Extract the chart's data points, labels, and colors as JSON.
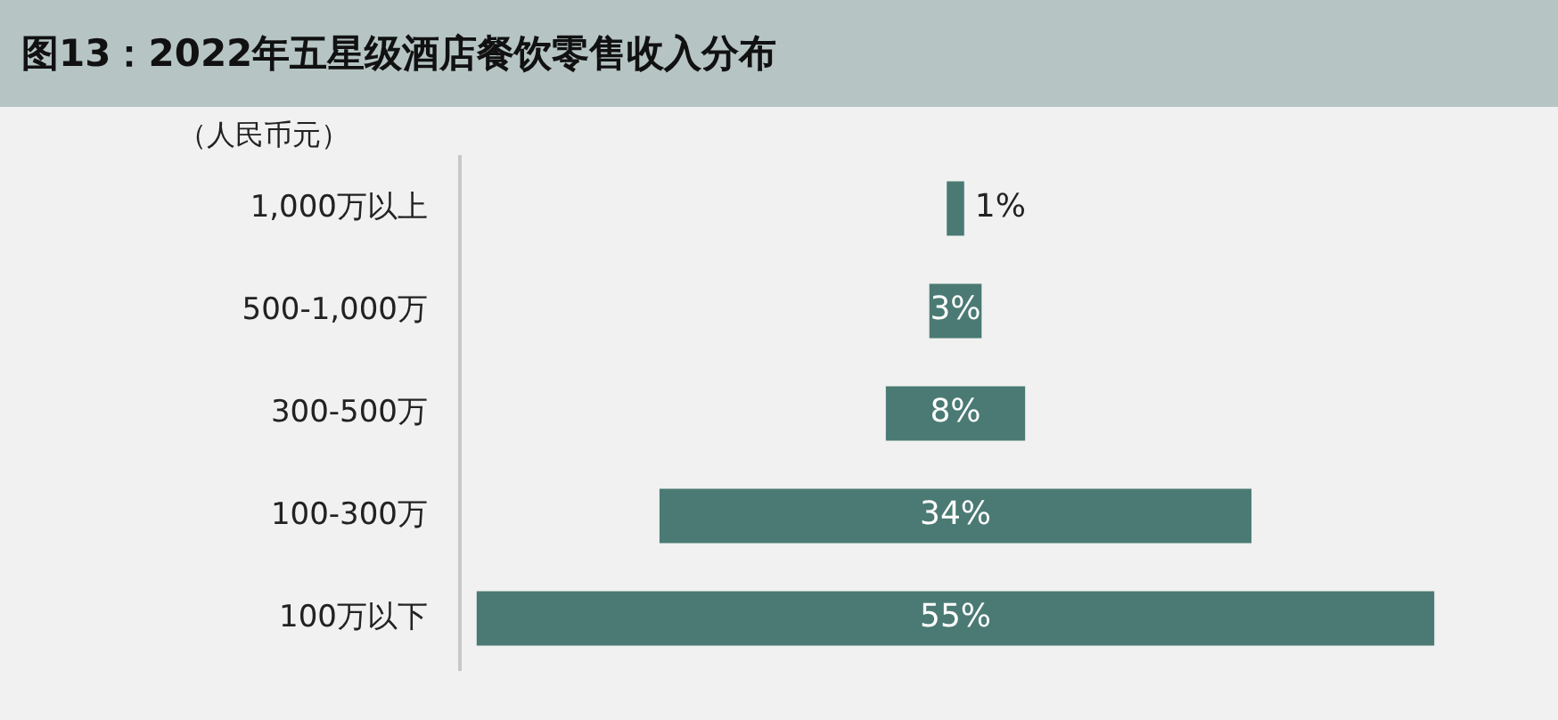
{
  "chart_data": {
    "type": "other",
    "title": "图13：2022年五星级酒店餐饮零售收入分布",
    "ylabel": "（人民币元）",
    "categories": [
      "1,000万以上",
      "500-1,000万",
      "300-500万",
      "100-300万",
      "100万以下"
    ],
    "values": [
      1,
      3,
      8,
      34,
      55
    ],
    "value_labels": [
      "1%",
      "3%",
      "8%",
      "34%",
      "55%"
    ],
    "color": "#4a7a73"
  }
}
